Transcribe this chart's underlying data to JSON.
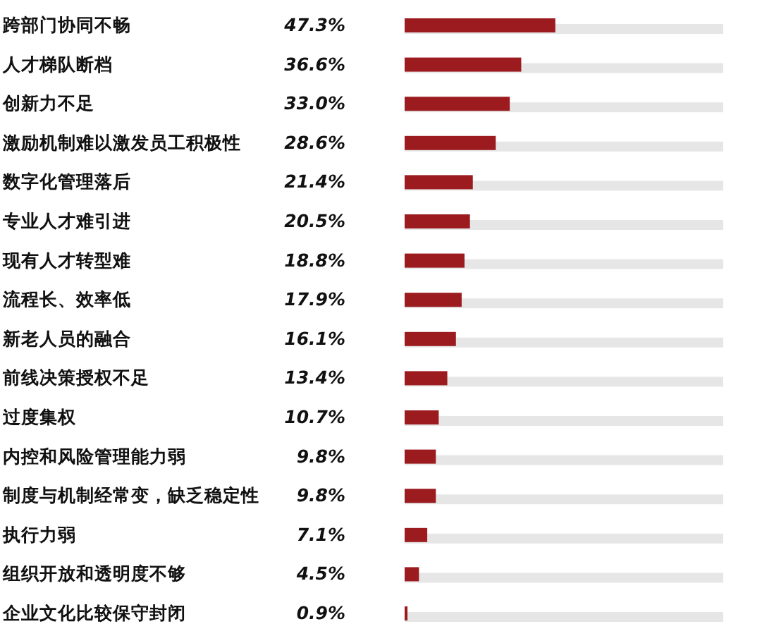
{
  "chart_data": {
    "type": "bar",
    "orientation": "horizontal",
    "categories": [
      "跨部门协同不畅",
      "人才梯队断档",
      "创新力不足",
      "激励机制难以激发员工积极性",
      "数字化管理落后",
      "专业人才难引进",
      "现有人才转型难",
      "流程长、效率低",
      "新老人员的融合",
      "前线决策授权不足",
      "过度集权",
      "内控和风险管理能力弱",
      "制度与机制经常变，缺乏稳定性",
      "执行力弱",
      "组织开放和透明度不够",
      "企业文化比较保守封闭"
    ],
    "values": [
      47.3,
      36.6,
      33.0,
      28.6,
      21.4,
      20.5,
      18.8,
      17.9,
      16.1,
      13.4,
      10.7,
      9.8,
      9.8,
      7.1,
      4.5,
      0.9
    ],
    "value_labels": [
      "47.3%",
      "36.6%",
      "33.0%",
      "28.6%",
      "21.4%",
      "20.5%",
      "18.8%",
      "17.9%",
      "16.1%",
      "13.4%",
      "10.7%",
      "9.8%",
      "9.8%",
      "7.1%",
      "4.5%",
      "0.9%"
    ],
    "color": "#9b1b1f",
    "xlim": [
      0,
      100
    ]
  }
}
